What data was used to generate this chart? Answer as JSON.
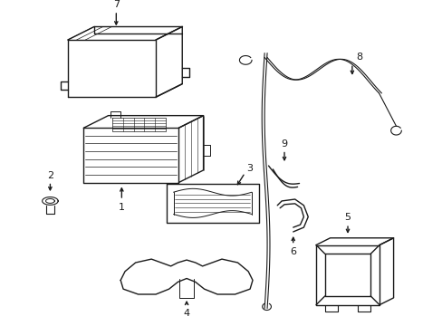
{
  "bg_color": "#ffffff",
  "line_color": "#1a1a1a",
  "line_width": 1.0,
  "fig_width": 4.89,
  "fig_height": 3.6,
  "dpi": 100
}
